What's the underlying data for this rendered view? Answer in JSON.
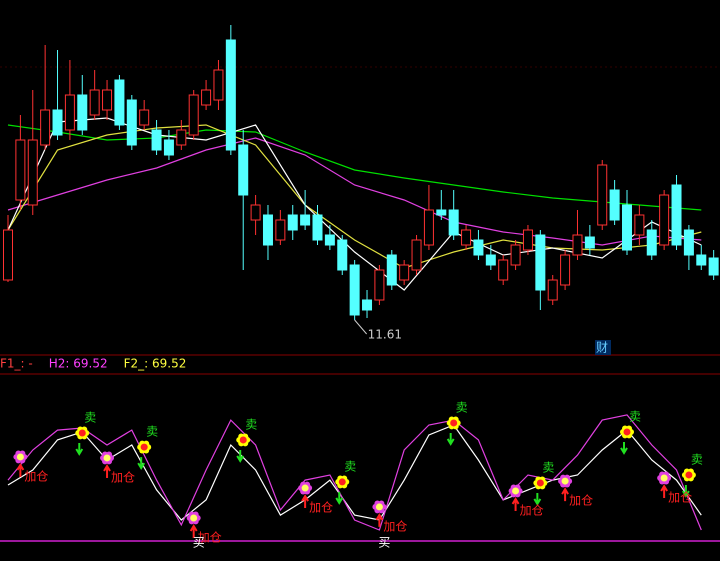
{
  "chart_data": [
    {
      "type": "candlestick",
      "ylim": [
        11.01,
        18.01
      ],
      "up_color": "#ff3232",
      "down_color": "#54ffff",
      "open": [
        12.41,
        14.01,
        13.91,
        15.11,
        15.81,
        15.41,
        16.11,
        15.71,
        15.81,
        16.41,
        16.01,
        15.51,
        15.41,
        15.21,
        15.11,
        15.31,
        15.91,
        16.01,
        17.21,
        15.11,
        13.61,
        13.71,
        13.21,
        13.71,
        13.71,
        13.71,
        13.31,
        13.21,
        12.71,
        12.01,
        12.01,
        12.91,
        12.41,
        12.61,
        13.11,
        13.81,
        13.81,
        13.11,
        13.21,
        12.91,
        12.41,
        12.71,
        13.01,
        13.31,
        12.01,
        12.31,
        12.91,
        13.27,
        13.51,
        14.21,
        13.91,
        13.31,
        13.41,
        13.11,
        14.31,
        13.41,
        12.91,
        12.85
      ],
      "high": [
        13.71,
        15.71,
        16.21,
        17.11,
        17.01,
        16.81,
        16.51,
        16.61,
        16.41,
        16.51,
        16.11,
        16.01,
        15.61,
        15.41,
        15.61,
        16.21,
        16.41,
        16.81,
        17.51,
        15.41,
        14.11,
        13.91,
        13.81,
        13.91,
        14.21,
        13.91,
        13.51,
        13.31,
        12.81,
        12.21,
        12.71,
        13.01,
        12.81,
        13.31,
        14.31,
        14.21,
        14.21,
        13.51,
        13.41,
        13.11,
        12.91,
        13.21,
        13.51,
        13.41,
        12.51,
        13.01,
        13.81,
        13.51,
        14.81,
        14.41,
        14.21,
        13.91,
        13.61,
        14.21,
        14.51,
        13.51,
        13.11,
        13.01
      ],
      "low": [
        12.37,
        13.81,
        13.71,
        15.01,
        15.21,
        15.21,
        15.31,
        15.61,
        15.61,
        15.41,
        15.01,
        15.41,
        14.91,
        14.81,
        15.01,
        15.21,
        15.81,
        15.81,
        14.91,
        12.61,
        13.31,
        12.81,
        13.11,
        13.21,
        13.41,
        13.11,
        13.01,
        12.51,
        11.61,
        11.65,
        11.91,
        12.21,
        12.31,
        12.51,
        13.01,
        13.61,
        13.21,
        13.01,
        12.81,
        12.61,
        12.31,
        12.61,
        12.91,
        11.81,
        11.91,
        12.21,
        12.81,
        12.91,
        13.41,
        13.51,
        12.91,
        13.11,
        12.81,
        13.01,
        13.01,
        12.61,
        12.61,
        12.41
      ],
      "close": [
        13.41,
        15.21,
        15.21,
        15.81,
        15.31,
        16.11,
        15.41,
        16.21,
        16.21,
        15.51,
        15.11,
        15.81,
        15.01,
        14.91,
        15.41,
        16.11,
        16.21,
        16.61,
        15.01,
        14.11,
        13.91,
        13.11,
        13.61,
        13.41,
        13.51,
        13.21,
        13.11,
        12.61,
        11.71,
        11.81,
        12.61,
        12.31,
        12.71,
        13.21,
        13.81,
        13.71,
        13.31,
        13.41,
        12.91,
        12.71,
        12.81,
        13.11,
        13.41,
        12.21,
        12.41,
        12.91,
        13.31,
        13.05,
        14.71,
        13.61,
        13.01,
        13.71,
        12.91,
        14.11,
        13.11,
        12.91,
        12.71,
        12.51
      ],
      "ma_x": [
        0,
        4,
        8,
        12,
        16,
        20,
        24,
        28,
        32,
        36,
        40,
        44,
        48,
        52,
        56
      ],
      "series": [
        {
          "color": "#00e000",
          "values": [
            15.51,
            15.37,
            15.21,
            15.25,
            15.41,
            15.37,
            14.97,
            14.61,
            14.45,
            14.31,
            14.17,
            14.05,
            13.97,
            13.89,
            13.81
          ]
        },
        {
          "color": "#e040e0",
          "values": [
            13.81,
            14.11,
            14.41,
            14.65,
            15.01,
            15.25,
            14.91,
            14.31,
            14.01,
            13.57,
            13.37,
            13.25,
            13.11,
            13.29,
            13.21
          ]
        },
        {
          "color": "#e0e040",
          "values": [
            13.41,
            15.01,
            15.31,
            15.45,
            15.51,
            15.11,
            13.91,
            13.21,
            12.65,
            12.97,
            13.21,
            13.05,
            13.01,
            13.11,
            13.37
          ]
        },
        {
          "color": "#ffffff",
          "values": [
            13.41,
            15.57,
            15.65,
            15.31,
            15.21,
            15.51,
            13.91,
            12.97,
            12.21,
            13.37,
            12.91,
            13.05,
            12.85,
            13.57,
            13.11
          ]
        }
      ],
      "low_label": 11.61,
      "badge": "财"
    },
    {
      "type": "line",
      "ylim": [
        0,
        100
      ],
      "status": [
        {
          "text": "F1_: -",
          "color": "#ff4040"
        },
        {
          "text": "H2: 69.52",
          "color": "#ff40ff"
        },
        {
          "text": "F2_: 69.52",
          "color": "#ffff40"
        }
      ],
      "x": [
        0,
        2,
        4,
        6,
        8,
        10,
        12,
        14,
        16,
        18,
        20,
        22,
        24,
        26,
        28,
        30,
        32,
        34,
        36,
        38,
        40,
        42,
        44,
        46,
        48,
        50,
        52,
        54,
        56
      ],
      "series": [
        {
          "color": "#ffffff",
          "values": [
            35.3,
            44.1,
            61.8,
            66.5,
            50,
            58.8,
            32.4,
            14.7,
            26.5,
            58.8,
            44.1,
            17.6,
            26.5,
            38.2,
            17.6,
            14.7,
            38.2,
            64.7,
            70.6,
            50,
            26.5,
            32.4,
            38.2,
            41.2,
            55.9,
            67.6,
            50,
            38.2,
            17.6
          ]
        },
        {
          "color": "#e040e0",
          "values": [
            38.2,
            55.9,
            67.6,
            68.8,
            58.8,
            67.6,
            38.2,
            11.8,
            44.1,
            73.5,
            58.8,
            20.6,
            38.2,
            41.2,
            14.7,
            8.8,
            55.9,
            70.6,
            73.5,
            61.8,
            26.5,
            41.2,
            38.2,
            52.9,
            73.5,
            76.5,
            58.8,
            44.1,
            8.8
          ]
        }
      ],
      "sell_signals": {
        "label": "卖",
        "x": [
          6,
          11,
          19,
          27,
          36,
          43,
          50,
          55
        ],
        "values": [
          65.9,
          57.6,
          61.8,
          37.1,
          71.8,
          36.5,
          66.5,
          41.2
        ]
      },
      "add_signals": {
        "label": "加仓",
        "x": [
          1,
          8,
          15,
          24,
          30,
          41,
          45,
          53
        ],
        "values": [
          51.8,
          51.2,
          15.9,
          33.5,
          22.4,
          31.8,
          37.6,
          39.4
        ]
      },
      "buy_signals": {
        "label": "买",
        "x": [
          15,
          30
        ]
      }
    }
  ]
}
